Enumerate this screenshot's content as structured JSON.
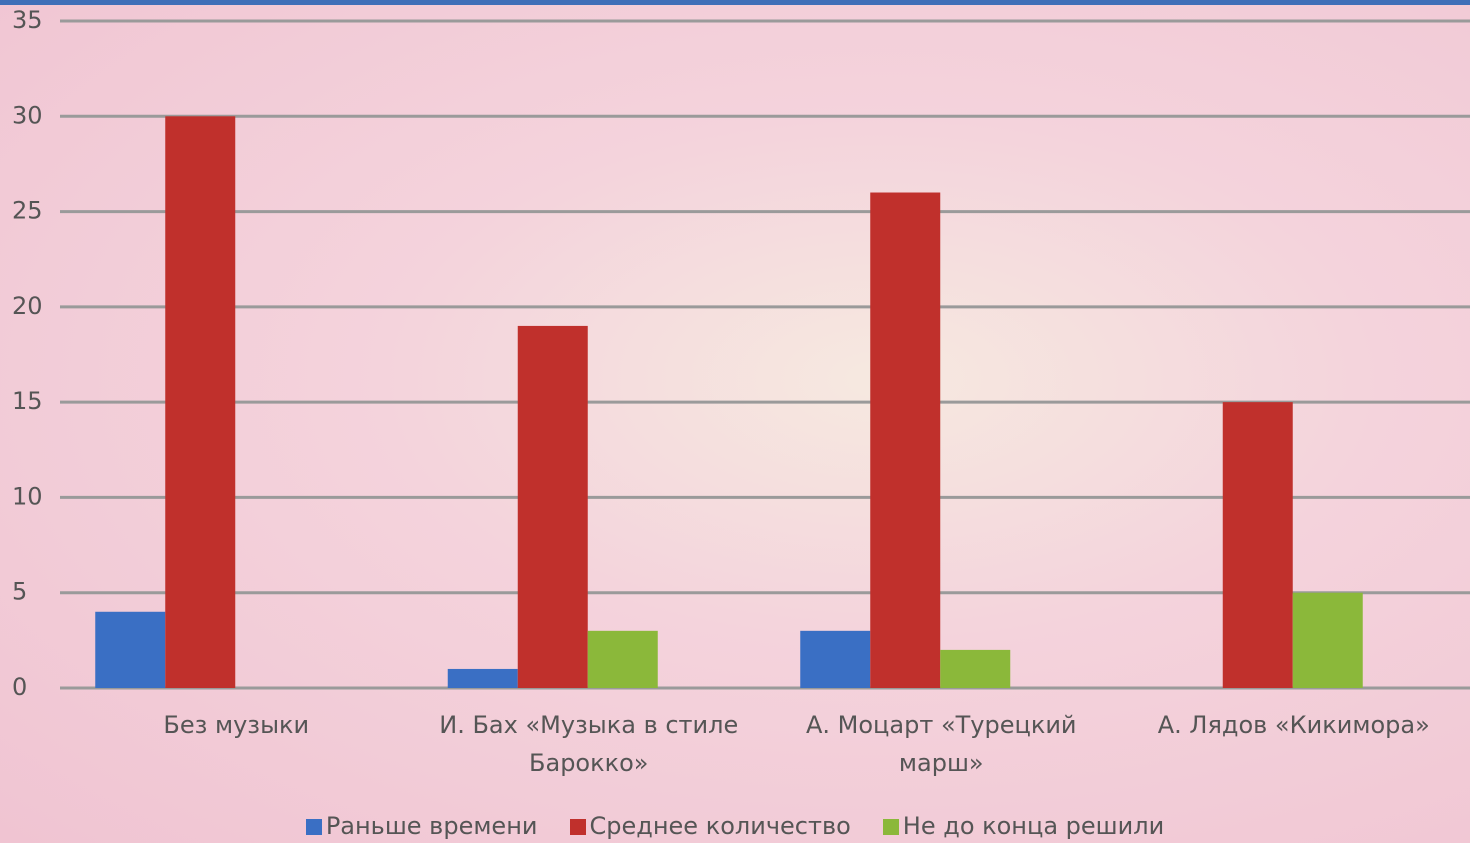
{
  "chart_data": {
    "type": "bar",
    "categories": [
      "Без музыки",
      "И. Бах «Музыка в стиле Барокко»",
      "А. Моцарт «Турецкий марш»",
      "А. Лядов «Кикимора»"
    ],
    "series": [
      {
        "name": "Раньше времени",
        "color": "#3a6fc4",
        "values": [
          4,
          1,
          3,
          0
        ]
      },
      {
        "name": "Среднее количество",
        "color": "#c0302c",
        "values": [
          30,
          19,
          26,
          15
        ]
      },
      {
        "name": "Не до конца решили",
        "color": "#8bb83a",
        "values": [
          0,
          3,
          2,
          5
        ]
      }
    ],
    "ylim": [
      0,
      35
    ],
    "yticks": [
      0,
      5,
      10,
      15,
      20,
      25,
      30,
      35
    ],
    "grid": true,
    "legend": "bottom"
  }
}
